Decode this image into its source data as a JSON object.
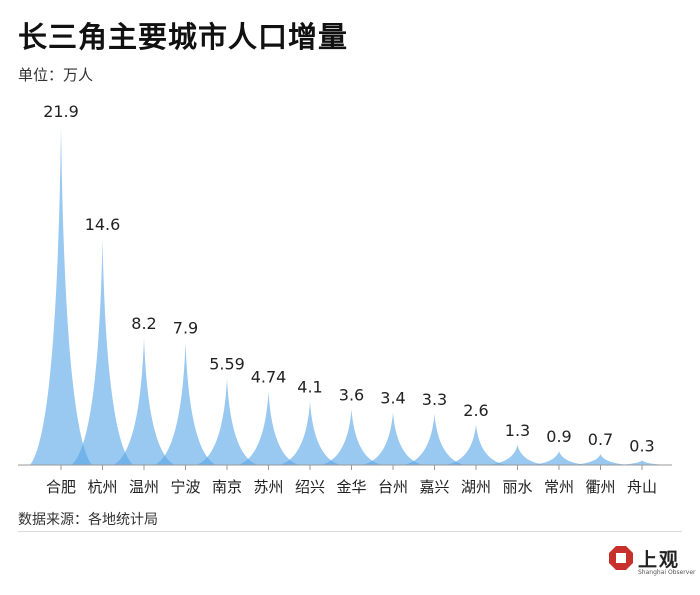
{
  "title": "长三角主要城市人口增量",
  "unit_label": "单位：万人",
  "source": "数据来源：各地统计局",
  "brand": {
    "name": "上观",
    "subtitle": "Shanghai Observer",
    "color": "#c8312b"
  },
  "chart_data": {
    "type": "bar",
    "title": "长三角主要城市人口增量",
    "ylabel": "单位：万人",
    "xlabel": "",
    "ylim": [
      0,
      22
    ],
    "color": "#5aa6e6",
    "categories": [
      "合肥",
      "杭州",
      "温州",
      "宁波",
      "南京",
      "苏州",
      "绍兴",
      "金华",
      "台州",
      "嘉兴",
      "湖州",
      "丽水",
      "常州",
      "衢州",
      "舟山"
    ],
    "value_labels": [
      "21.9",
      "14.6",
      "8.2",
      "7.9",
      "5.59",
      "4.74",
      "4.1",
      "3.6",
      "3.4",
      "3.3",
      "2.6",
      "1.3",
      "0.9",
      "0.7",
      "0.3"
    ],
    "values": [
      21.9,
      14.6,
      8.2,
      7.9,
      5.59,
      4.74,
      4.1,
      3.6,
      3.4,
      3.3,
      2.6,
      1.3,
      0.9,
      0.7,
      0.3
    ]
  }
}
